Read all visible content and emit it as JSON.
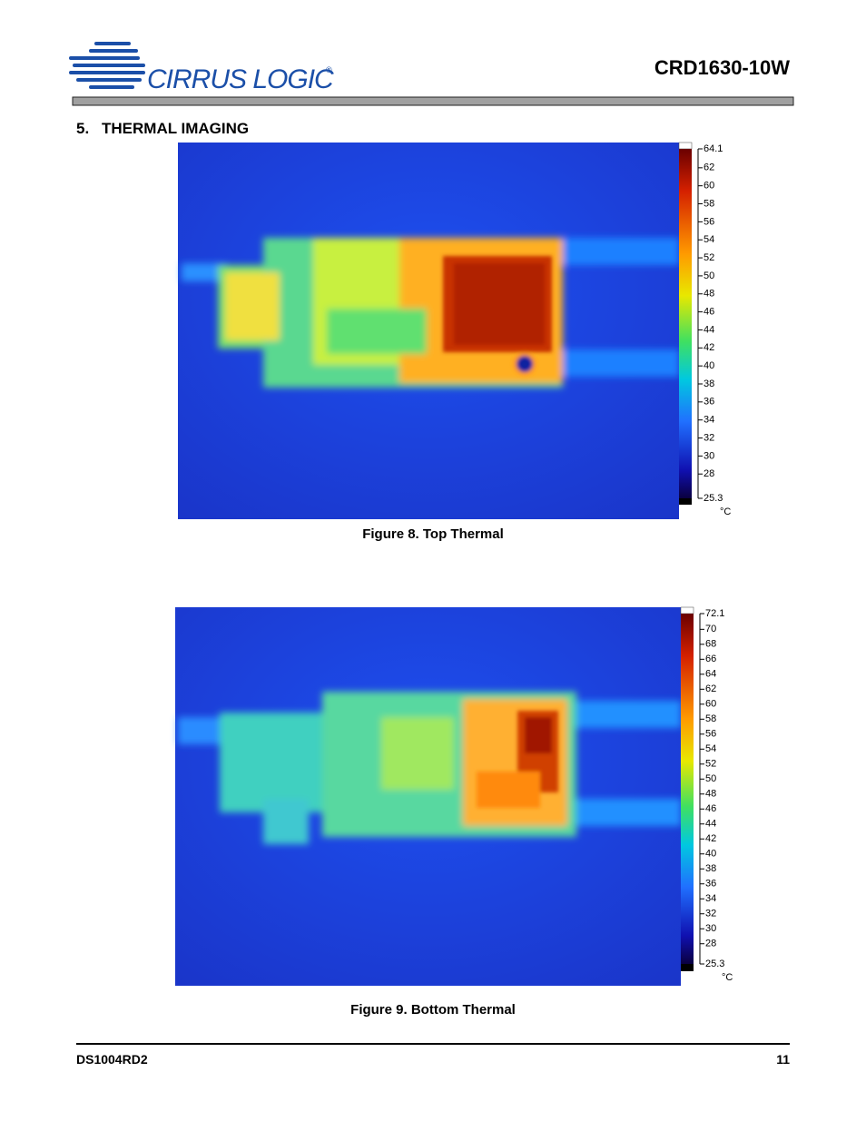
{
  "header": {
    "logo": "CIRRUS LOGIC",
    "registered": "®",
    "doc_title": "CRD1630-10W"
  },
  "section": {
    "number": "5.",
    "title": "THERMAL IMAGING"
  },
  "figures": [
    {
      "scale": {
        "ticks": [
          64.1,
          62,
          60,
          58,
          56,
          54,
          52,
          50,
          48,
          46,
          44,
          42,
          40,
          38,
          36,
          34,
          32,
          30,
          28,
          25.3
        ],
        "unit": "°C"
      },
      "caption": "Figure 8.  Top Thermal"
    },
    {
      "scale": {
        "ticks": [
          72.1,
          70,
          68,
          66,
          64,
          62,
          60,
          58,
          56,
          54,
          52,
          50,
          48,
          46,
          44,
          42,
          40,
          38,
          36,
          34,
          32,
          30,
          28,
          25.3
        ],
        "unit": "°C"
      },
      "caption": "Figure 9.  Bottom Thermal"
    }
  ],
  "footer": {
    "doc_id": "DS1004RD2",
    "page": "11"
  }
}
